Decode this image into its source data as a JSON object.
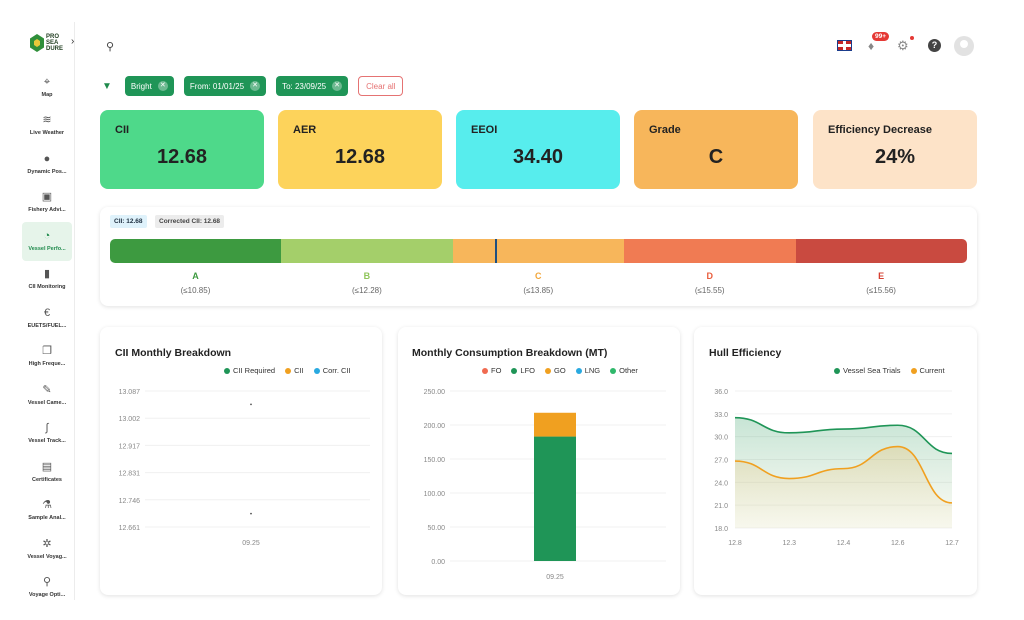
{
  "brand": {
    "logo_text": [
      "PRO",
      "SEA",
      "DURE"
    ]
  },
  "sidebar": {
    "items": [
      {
        "label": "Map",
        "icon": "map-pin-icon",
        "glyph": "⌖"
      },
      {
        "label": "Live Weather",
        "icon": "wind-icon",
        "glyph": "≋"
      },
      {
        "label": "Dynamic Pos...",
        "icon": "location-icon",
        "glyph": "●"
      },
      {
        "label": "Fishery Advi...",
        "icon": "briefcase-icon",
        "glyph": "▣"
      },
      {
        "label": "Vessel Perfo...",
        "icon": "gauge-icon",
        "glyph": "◔",
        "active": true
      },
      {
        "label": "CII Monitoring",
        "icon": "bar-chart-icon",
        "glyph": "▮"
      },
      {
        "label": "EUETS/FUEL...",
        "icon": "euro-icon",
        "glyph": "€"
      },
      {
        "label": "High Freque...",
        "icon": "copy-icon",
        "glyph": "❐"
      },
      {
        "label": "Vessel Came...",
        "icon": "camera-icon",
        "glyph": "✎"
      },
      {
        "label": "Vessel Track...",
        "icon": "route-icon",
        "glyph": "∫"
      },
      {
        "label": "Certificates",
        "icon": "certificate-icon",
        "glyph": "▤"
      },
      {
        "label": "Sample Anal...",
        "icon": "flask-icon",
        "glyph": "⚗"
      },
      {
        "label": "Vessel Voyag...",
        "icon": "ship-wheel-icon",
        "glyph": "✲"
      },
      {
        "label": "Voyage Opti...",
        "icon": "route-person-icon",
        "glyph": "⚲"
      }
    ]
  },
  "header": {
    "notifications": "99+"
  },
  "filters": {
    "chips": [
      "Bright",
      "From: 01/01/25",
      "To: 23/09/25"
    ],
    "clear_label": "Clear all"
  },
  "kpis": [
    {
      "title": "CII",
      "value": "12.68",
      "color": "#4ed98a"
    },
    {
      "title": "AER",
      "value": "12.68",
      "color": "#fdd35b"
    },
    {
      "title": "EEOI",
      "value": "34.40",
      "color": "#57eded"
    },
    {
      "title": "Grade",
      "value": "C",
      "color": "#f7b65b"
    },
    {
      "title": "Efficiency Decrease",
      "value": "24%",
      "color": "#fde3c8"
    }
  ],
  "cii_rating": {
    "cii_tag": "CII: 12.68",
    "corrected_tag": "Corrected CII: 12.68",
    "marker_value": 12.68,
    "grades": [
      {
        "letter": "A",
        "range": "(≤10.85)",
        "color": "#3d9a40",
        "label_color": "#3d9a40"
      },
      {
        "letter": "B",
        "range": "(≤12.28)",
        "color": "#a4cf6a",
        "label_color": "#8fc55a"
      },
      {
        "letter": "C",
        "range": "(≤13.85)",
        "color": "#f7b65b",
        "label_color": "#f2a63a"
      },
      {
        "letter": "D",
        "range": "(≤15.55)",
        "color": "#f07b53",
        "label_color": "#e95d3c"
      },
      {
        "letter": "E",
        "range": "(≤15.56)",
        "color": "#c94a40",
        "label_color": "#d64032"
      }
    ]
  },
  "charts": {
    "cii": {
      "title": "CII Monthly Breakdown",
      "legend": [
        {
          "name": "CII Required",
          "color": "#1f9557"
        },
        {
          "name": "CII",
          "color": "#f0a020"
        },
        {
          "name": "Corr. CII",
          "color": "#29a9e0"
        }
      ]
    },
    "consumption": {
      "title": "Monthly Consumption Breakdown (MT)",
      "legend": [
        {
          "name": "FO",
          "color": "#f06a50"
        },
        {
          "name": "LFO",
          "color": "#1f9557"
        },
        {
          "name": "GO",
          "color": "#f0a020"
        },
        {
          "name": "LNG",
          "color": "#29a9e0"
        },
        {
          "name": "Other",
          "color": "#2fb86b"
        }
      ]
    },
    "hull": {
      "title": "Hull Efficiency",
      "legend": [
        {
          "name": "Vessel Sea Trials",
          "color": "#1f9557"
        },
        {
          "name": "Current",
          "color": "#f0a020"
        }
      ]
    }
  },
  "chart_data": [
    {
      "type": "scatter",
      "title": "CII Monthly Breakdown",
      "x": [
        "09.25"
      ],
      "ylim": [
        12.661,
        13.087
      ],
      "yticks": [
        "13.087",
        "13.002",
        "12.917",
        "12.831",
        "12.746",
        "12.661"
      ],
      "series": [
        {
          "name": "CII Required",
          "values": [
            13.045
          ]
        },
        {
          "name": "CII",
          "values": [
            12.703
          ]
        }
      ]
    },
    {
      "type": "bar",
      "title": "Monthly Consumption Breakdown (MT)",
      "categories": [
        "09.25"
      ],
      "ylim": [
        0,
        250
      ],
      "yticks": [
        "250.00",
        "200.00",
        "150.00",
        "100.00",
        "50.00",
        "0.00"
      ],
      "series": [
        {
          "name": "LFO",
          "values": [
            183
          ]
        },
        {
          "name": "GO",
          "values": [
            35
          ]
        }
      ]
    },
    {
      "type": "area",
      "title": "Hull Efficiency",
      "x": [
        "12.8",
        "12.3",
        "12.4",
        "12.6",
        "12.7"
      ],
      "ylim": [
        18.0,
        36.0
      ],
      "yticks": [
        "36.0",
        "33.0",
        "30.0",
        "27.0",
        "24.0",
        "21.0",
        "18.0"
      ],
      "series": [
        {
          "name": "Vessel Sea Trials",
          "values": [
            32.5,
            30.5,
            31.0,
            31.5,
            27.8
          ]
        },
        {
          "name": "Current",
          "values": [
            26.8,
            24.5,
            25.8,
            28.7,
            21.3
          ]
        }
      ]
    }
  ]
}
